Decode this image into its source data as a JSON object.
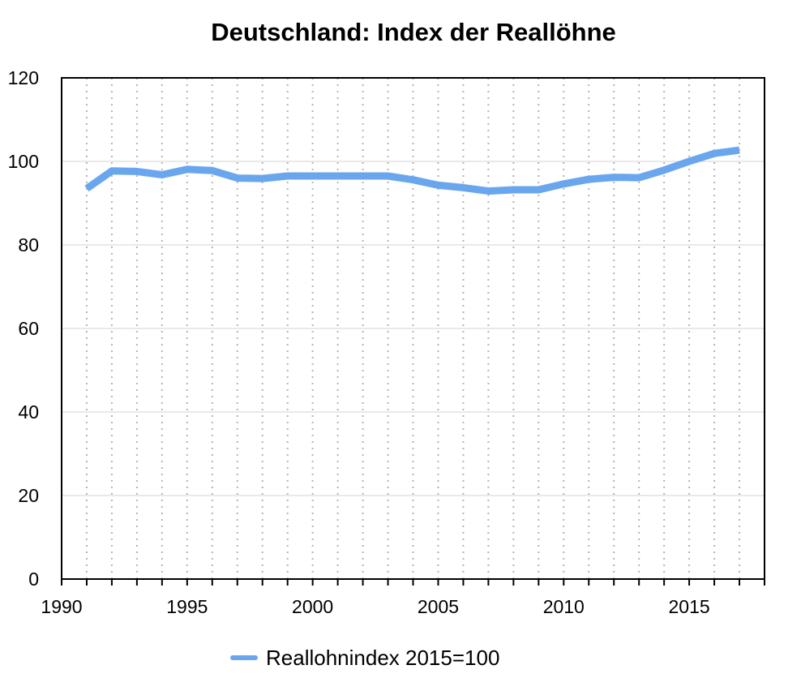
{
  "chart_data": {
    "type": "line",
    "title": "Deutschland: Index der Reallöhne",
    "xlabel": "",
    "ylabel": "",
    "xlim": [
      1990,
      2018
    ],
    "ylim": [
      0,
      120
    ],
    "x_ticks": [
      1990,
      1995,
      2000,
      2005,
      2010,
      2015
    ],
    "y_ticks": [
      0,
      20,
      40,
      60,
      80,
      100,
      120
    ],
    "grid": {
      "horizontal": true,
      "vertical": "dotted, yearly"
    },
    "legend_position": "bottom-center",
    "series": [
      {
        "name": "Reallohnindex 2015=100",
        "color": "#6aa6ee",
        "x": [
          1991,
          1992,
          1993,
          1994,
          1995,
          1996,
          1997,
          1998,
          1999,
          2000,
          2001,
          2002,
          2003,
          2004,
          2005,
          2006,
          2007,
          2008,
          2009,
          2010,
          2011,
          2012,
          2013,
          2014,
          2015,
          2016,
          2017
        ],
        "y": [
          93.5,
          97.7,
          97.6,
          96.8,
          98.1,
          97.8,
          96.0,
          95.9,
          96.5,
          96.5,
          96.5,
          96.5,
          96.5,
          95.6,
          94.3,
          93.7,
          92.9,
          93.2,
          93.2,
          94.6,
          95.7,
          96.2,
          96.1,
          97.9,
          100.0,
          101.9,
          102.7
        ]
      }
    ]
  }
}
